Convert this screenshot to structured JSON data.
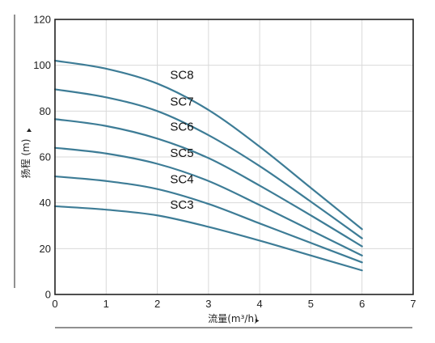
{
  "chart_data": {
    "type": "line",
    "xlabel": "流量(m³/h)",
    "ylabel": "扬程 (m)",
    "xlim": [
      0,
      7
    ],
    "ylim": [
      0,
      120
    ],
    "x_ticks": [
      "0",
      "1",
      "2",
      "3",
      "4",
      "5",
      "6",
      "7"
    ],
    "y_ticks": [
      "0",
      "20",
      "40",
      "60",
      "80",
      "100",
      "120"
    ],
    "grid": true,
    "line_color": "#3d7c96",
    "series": [
      {
        "name": "SC3",
        "label_at": [
          2.25,
          37.5
        ],
        "x": [
          0,
          1,
          2,
          3,
          4,
          5,
          6
        ],
        "y": [
          38.5,
          37,
          34.5,
          29.5,
          23.5,
          17,
          10.5
        ]
      },
      {
        "name": "SC4",
        "label_at": [
          2.25,
          48.5
        ],
        "x": [
          0,
          1,
          2,
          3,
          4,
          5,
          6
        ],
        "y": [
          51.5,
          49.5,
          46,
          39.5,
          31,
          22.5,
          14
        ]
      },
      {
        "name": "SC5",
        "label_at": [
          2.25,
          60
        ],
        "x": [
          0,
          1,
          2,
          3,
          4,
          5,
          6
        ],
        "y": [
          64,
          61.5,
          57,
          49.5,
          39,
          28,
          17
        ]
      },
      {
        "name": "SC6",
        "label_at": [
          2.25,
          71.5
        ],
        "x": [
          0,
          1,
          2,
          3,
          4,
          5,
          6
        ],
        "y": [
          76.5,
          73.5,
          68,
          59.5,
          47.5,
          34.5,
          21
        ]
      },
      {
        "name": "SC7",
        "label_at": [
          2.25,
          82.5
        ],
        "x": [
          0,
          1,
          2,
          3,
          4,
          5,
          6
        ],
        "y": [
          89.5,
          86,
          80,
          69.5,
          56,
          40.5,
          24.5
        ]
      },
      {
        "name": "SC8",
        "label_at": [
          2.25,
          94
        ],
        "x": [
          0,
          1,
          2,
          3,
          4,
          5,
          6
        ],
        "y": [
          102,
          98.5,
          92,
          80.5,
          64.5,
          46.5,
          28.5
        ]
      }
    ]
  }
}
